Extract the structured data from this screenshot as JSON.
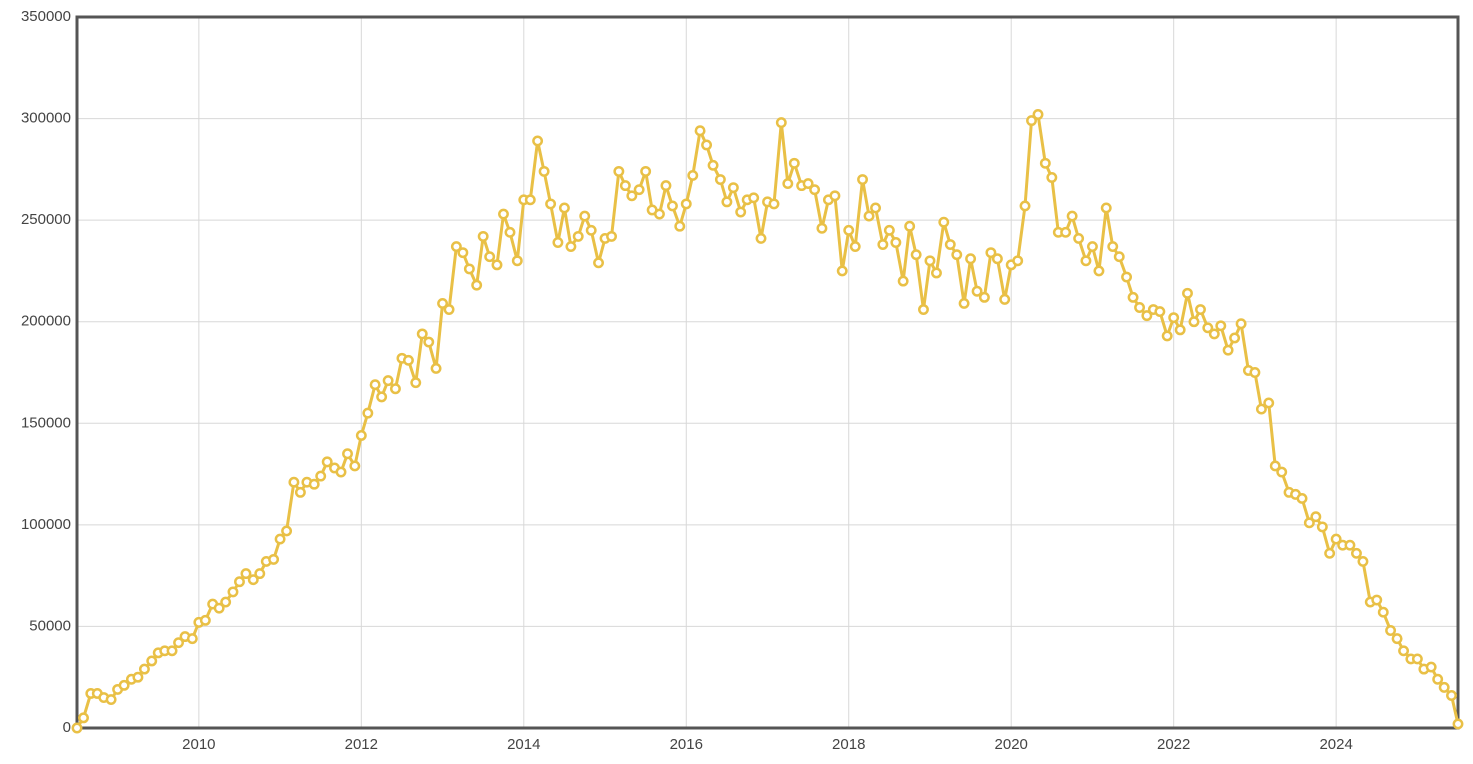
{
  "chart_data": {
    "type": "line",
    "color": "#e9c046",
    "grid": true,
    "xlim": [
      2008.5,
      2025.5
    ],
    "xticks": [
      2010,
      2012,
      2014,
      2016,
      2018,
      2020,
      2022,
      2024
    ],
    "ylim": [
      0,
      350000
    ],
    "yticks": [
      0,
      50000,
      100000,
      150000,
      200000,
      250000,
      300000,
      350000
    ],
    "x": [
      2008.5,
      2008.58,
      2008.67,
      2008.75,
      2008.83,
      2008.92,
      2009,
      2009.08,
      2009.17,
      2009.25,
      2009.33,
      2009.42,
      2009.5,
      2009.58,
      2009.67,
      2009.75,
      2009.83,
      2009.92,
      2010,
      2010.08,
      2010.17,
      2010.25,
      2010.33,
      2010.42,
      2010.5,
      2010.58,
      2010.67,
      2010.75,
      2010.83,
      2010.92,
      2011,
      2011.08,
      2011.17,
      2011.25,
      2011.33,
      2011.42,
      2011.5,
      2011.58,
      2011.67,
      2011.75,
      2011.83,
      2011.92,
      2012,
      2012.08,
      2012.17,
      2012.25,
      2012.33,
      2012.42,
      2012.5,
      2012.58,
      2012.67,
      2012.75,
      2012.83,
      2012.92,
      2013,
      2013.08,
      2013.17,
      2013.25,
      2013.33,
      2013.42,
      2013.5,
      2013.58,
      2013.67,
      2013.75,
      2013.83,
      2013.92,
      2014,
      2014.08,
      2014.17,
      2014.25,
      2014.33,
      2014.42,
      2014.5,
      2014.58,
      2014.67,
      2014.75,
      2014.83,
      2014.92,
      2015,
      2015.08,
      2015.17,
      2015.25,
      2015.33,
      2015.42,
      2015.5,
      2015.58,
      2015.67,
      2015.75,
      2015.83,
      2015.92,
      2016,
      2016.08,
      2016.17,
      2016.25,
      2016.33,
      2016.42,
      2016.5,
      2016.58,
      2016.67,
      2016.75,
      2016.83,
      2016.92,
      2017,
      2017.08,
      2017.17,
      2017.25,
      2017.33,
      2017.42,
      2017.5,
      2017.58,
      2017.67,
      2017.75,
      2017.83,
      2017.92,
      2018,
      2018.08,
      2018.17,
      2018.25,
      2018.33,
      2018.42,
      2018.5,
      2018.58,
      2018.67,
      2018.75,
      2018.83,
      2018.92,
      2019,
      2019.08,
      2019.17,
      2019.25,
      2019.33,
      2019.42,
      2019.5,
      2019.58,
      2019.67,
      2019.75,
      2019.83,
      2019.92,
      2020,
      2020.08,
      2020.17,
      2020.25,
      2020.33,
      2020.42,
      2020.5,
      2020.58,
      2020.67,
      2020.75,
      2020.83,
      2020.92,
      2021,
      2021.08,
      2021.17,
      2021.25,
      2021.33,
      2021.42,
      2021.5,
      2021.58,
      2021.67,
      2021.75,
      2021.83,
      2021.92,
      2022,
      2022.08,
      2022.17,
      2022.25,
      2022.33,
      2022.42,
      2022.5,
      2022.58,
      2022.67,
      2022.75,
      2022.83,
      2022.92,
      2023,
      2023.08,
      2023.17,
      2023.25,
      2023.33,
      2023.42,
      2023.5,
      2023.58,
      2023.67,
      2023.75,
      2023.83,
      2023.92,
      2024,
      2024.08,
      2024.17,
      2024.25,
      2024.33,
      2024.42,
      2024.5,
      2024.58,
      2024.67,
      2024.75,
      2024.83,
      2024.92,
      2025,
      2025.08,
      2025.17,
      2025.25,
      2025.33,
      2025.42,
      2025.5
    ],
    "values": [
      0,
      5000,
      17000,
      17000,
      15000,
      14000,
      19000,
      21000,
      24000,
      25000,
      29000,
      33000,
      37000,
      38000,
      38000,
      42000,
      45000,
      44000,
      52000,
      53000,
      61000,
      59000,
      62000,
      67000,
      72000,
      76000,
      73000,
      76000,
      82000,
      83000,
      93000,
      97000,
      121000,
      116000,
      121000,
      120000,
      124000,
      131000,
      128000,
      126000,
      135000,
      129000,
      144000,
      155000,
      169000,
      163000,
      171000,
      167000,
      182000,
      181000,
      170000,
      194000,
      190000,
      177000,
      209000,
      206000,
      237000,
      234000,
      226000,
      218000,
      242000,
      232000,
      228000,
      253000,
      244000,
      230000,
      260000,
      260000,
      289000,
      274000,
      258000,
      239000,
      256000,
      237000,
      242000,
      252000,
      245000,
      229000,
      241000,
      242000,
      274000,
      267000,
      262000,
      265000,
      274000,
      255000,
      253000,
      267000,
      257000,
      247000,
      258000,
      272000,
      294000,
      287000,
      277000,
      270000,
      259000,
      266000,
      254000,
      260000,
      261000,
      241000,
      259000,
      258000,
      298000,
      268000,
      278000,
      267000,
      268000,
      265000,
      246000,
      260000,
      262000,
      225000,
      245000,
      237000,
      270000,
      252000,
      256000,
      238000,
      245000,
      239000,
      220000,
      247000,
      233000,
      206000,
      230000,
      224000,
      249000,
      238000,
      233000,
      209000,
      231000,
      215000,
      212000,
      234000,
      231000,
      211000,
      228000,
      230000,
      257000,
      299000,
      302000,
      278000,
      271000,
      244000,
      244000,
      252000,
      241000,
      230000,
      237000,
      225000,
      256000,
      237000,
      232000,
      222000,
      212000,
      207000,
      203000,
      206000,
      205000,
      193000,
      202000,
      196000,
      214000,
      200000,
      206000,
      197000,
      194000,
      198000,
      186000,
      192000,
      199000,
      176000,
      175000,
      157000,
      160000,
      129000,
      126000,
      116000,
      115000,
      113000,
      101000,
      104000,
      99000,
      86000,
      93000,
      90000,
      90000,
      86000,
      82000,
      62000,
      63000,
      57000,
      48000,
      44000,
      38000,
      34000,
      34000,
      29000,
      30000,
      24000,
      20000,
      16000,
      2000
    ]
  }
}
